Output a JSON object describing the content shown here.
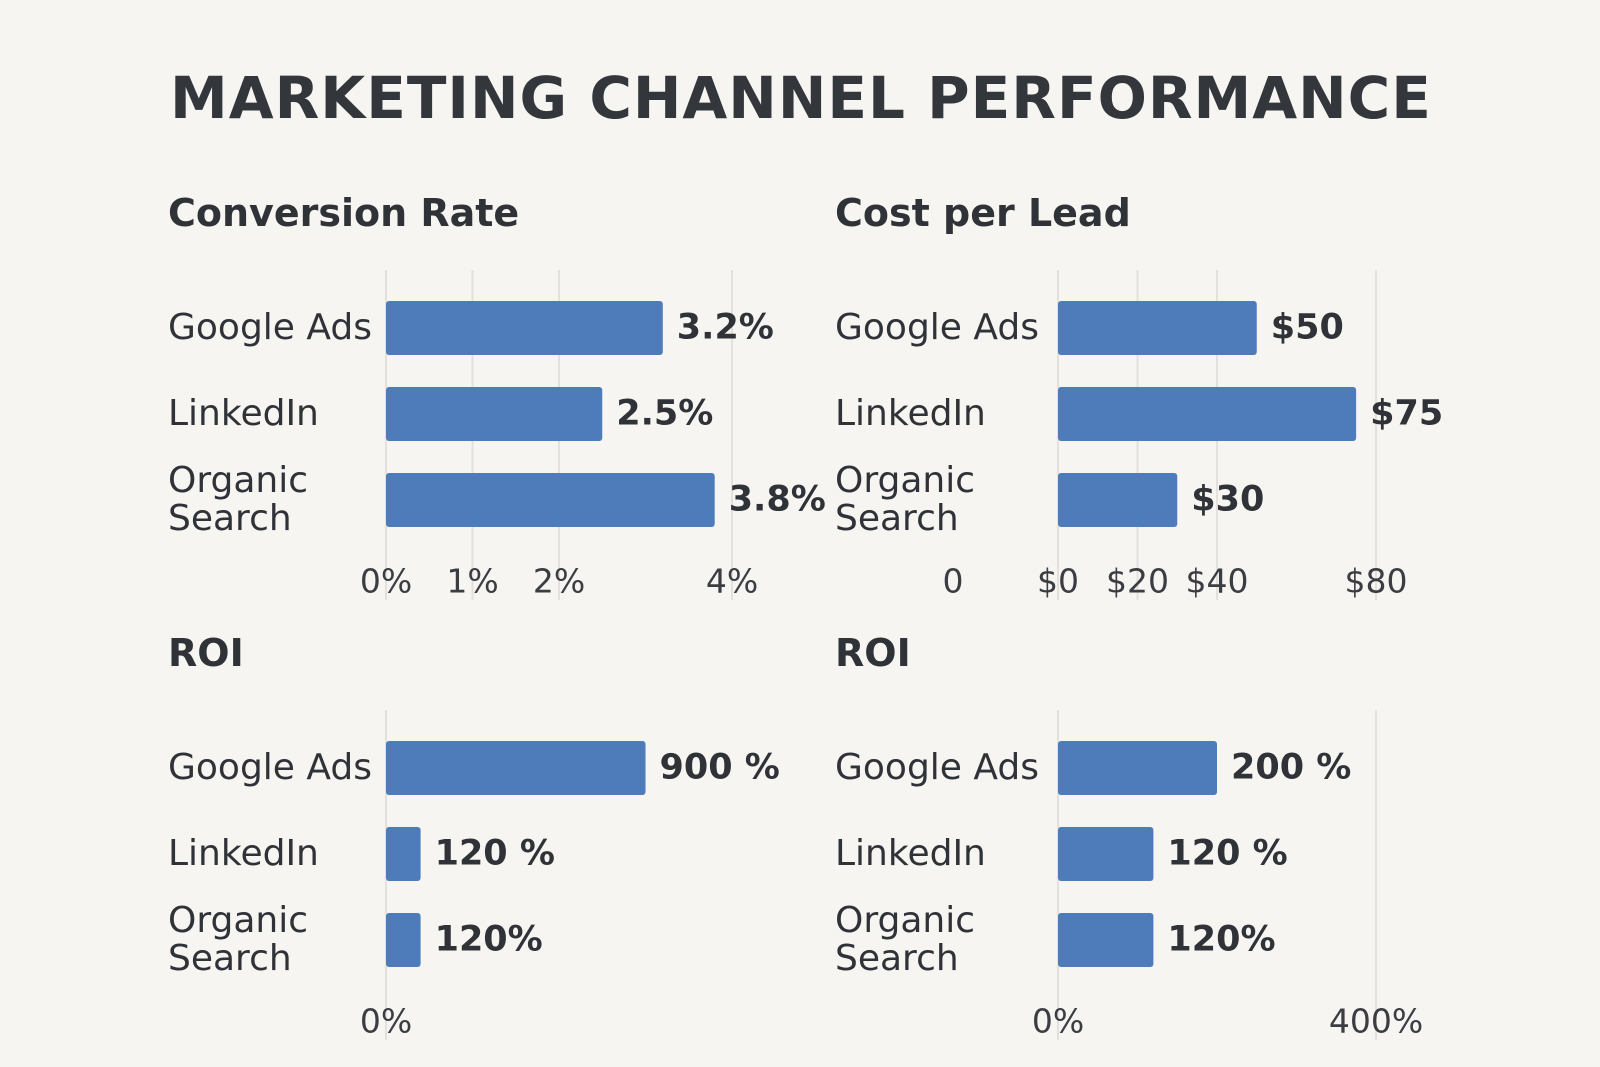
{
  "title": "MARKETING CHANNEL PERFORMANCE",
  "chart_data": [
    {
      "type": "bar",
      "orientation": "horizontal",
      "title": "Conversion Rate",
      "categories": [
        "Google Ads",
        "LinkedIn",
        "Organic Search"
      ],
      "values": [
        3.2,
        2.5,
        3.8
      ],
      "value_labels": [
        "3.2%",
        "2.5%",
        "3.8%"
      ],
      "color": "#4e7bb9",
      "xlim": [
        0,
        4
      ],
      "xticks": [
        {
          "value": 0,
          "label": "0%"
        },
        {
          "value": 1,
          "label": "1%"
        },
        {
          "value": 2,
          "label": "2%"
        },
        {
          "value": 4,
          "label": "4%"
        }
      ],
      "grid": true
    },
    {
      "type": "bar",
      "orientation": "horizontal",
      "title": "Cost per Lead",
      "categories": [
        "Google Ads",
        "LinkedIn",
        "Organic Search"
      ],
      "values": [
        50,
        75,
        30
      ],
      "value_labels": [
        "$50",
        "$75",
        "$30"
      ],
      "color": "#4e7bb9",
      "xlim": [
        0,
        80
      ],
      "axis_note": "0",
      "xticks": [
        {
          "value": 0,
          "label": "$0"
        },
        {
          "value": 20,
          "label": "$20"
        },
        {
          "value": 40,
          "label": "$40"
        },
        {
          "value": 80,
          "label": "$80"
        }
      ],
      "grid": true
    },
    {
      "type": "bar",
      "orientation": "horizontal",
      "title": "ROI",
      "categories": [
        "Google Ads",
        "LinkedIn",
        "Organic Search"
      ],
      "values": [
        900,
        120,
        120
      ],
      "value_labels": [
        "900 %",
        "120 %",
        "120%"
      ],
      "color": "#4e7bb9",
      "xlim": [
        0,
        1200
      ],
      "xticks": [
        {
          "value": 0,
          "label": "0%"
        }
      ],
      "grid": true
    },
    {
      "type": "bar",
      "orientation": "horizontal",
      "title": "ROI",
      "categories": [
        "Google Ads",
        "LinkedIn",
        "Organic Search"
      ],
      "values": [
        200,
        120,
        120
      ],
      "value_labels": [
        "200 %",
        "120 %",
        "120%"
      ],
      "color": "#4e7bb9",
      "xlim": [
        0,
        400
      ],
      "xticks": [
        {
          "value": 0,
          "label": "0%"
        },
        {
          "value": 400,
          "label": "400%"
        }
      ],
      "grid": true
    }
  ]
}
